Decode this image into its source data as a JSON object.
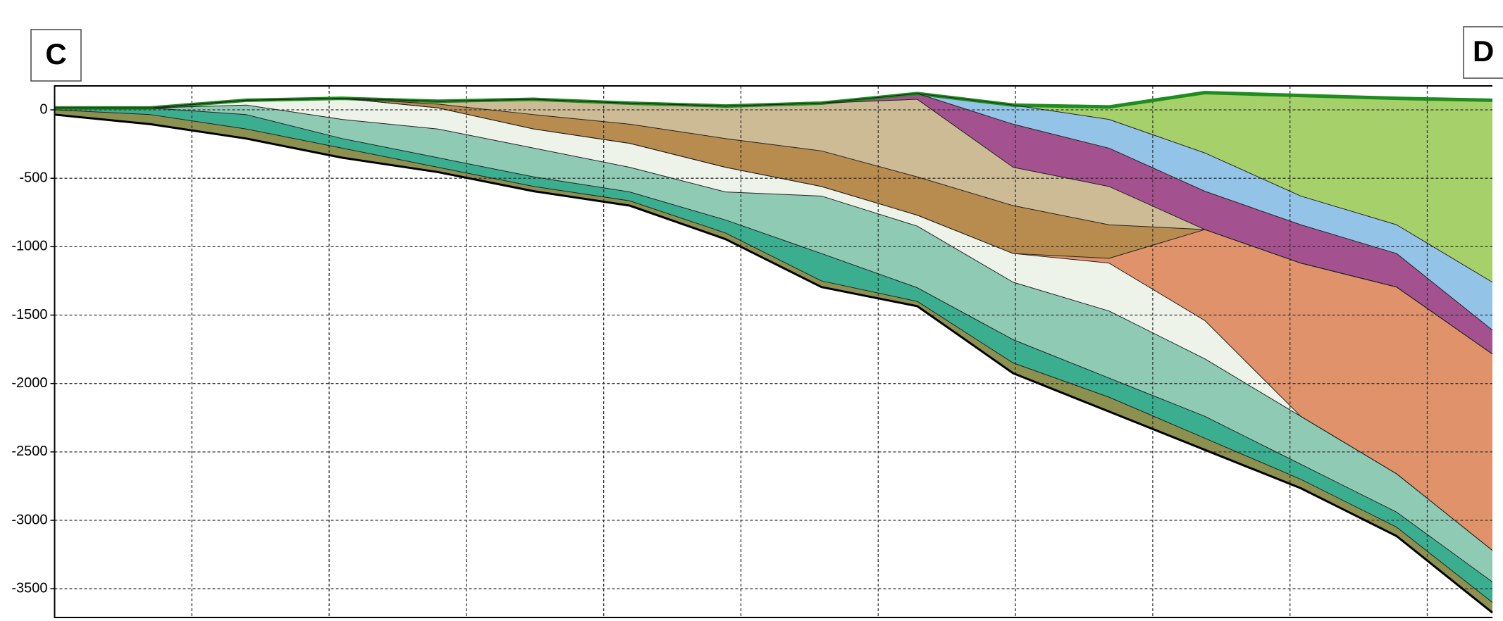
{
  "chart_data": {
    "type": "section",
    "labels": {
      "left": "C",
      "right": "D"
    },
    "ylim": [
      -3710,
      175
    ],
    "yticks": [
      0,
      -500,
      -1000,
      -1500,
      -2000,
      -2500,
      -3000,
      -3500
    ],
    "grid": true,
    "surface_color": "#1e8c1e",
    "series": [
      {
        "color": "#a6d06a",
        "values": [
          14,
          14,
          70,
          84,
          63,
          77,
          49,
          28,
          49,
          119,
          35,
          21,
          126,
          105,
          84,
          70
        ]
      },
      {
        "color": "#93c4e8",
        "values": [
          14,
          14,
          70,
          84,
          63,
          77,
          49,
          28,
          49,
          119,
          35,
          -70,
          -315,
          -630,
          -840,
          -1260
        ]
      },
      {
        "color": "#a3528f",
        "values": [
          14,
          14,
          70,
          84,
          63,
          77,
          49,
          28,
          49,
          119,
          -105,
          -280,
          -595,
          -840,
          -1050,
          -1610
        ]
      },
      {
        "color": "#cdbb96",
        "values": [
          14,
          14,
          70,
          84,
          63,
          77,
          49,
          28,
          49,
          77,
          -420,
          -560,
          -875,
          -1120,
          -1295,
          -1785
        ]
      },
      {
        "color": "#b88b4f",
        "values": [
          14,
          14,
          70,
          84,
          42,
          -35,
          -105,
          -210,
          -300,
          -490,
          -700,
          -840,
          -875,
          -1120,
          -1295,
          -1785
        ]
      },
      {
        "color": "#e0936a",
        "values": [
          14,
          14,
          70,
          84,
          14,
          -140,
          -245,
          -420,
          -560,
          -770,
          -1050,
          -1085,
          -875,
          -1120,
          -1295,
          -1785
        ]
      },
      {
        "color": "#eef3ea",
        "values": [
          14,
          14,
          70,
          84,
          14,
          -140,
          -245,
          -420,
          -560,
          -770,
          -1050,
          -1120,
          -1540,
          -2240,
          -2660,
          -3220
        ]
      },
      {
        "color": "#8ecab4",
        "values": [
          14,
          14,
          35,
          -70,
          -140,
          -280,
          -420,
          -600,
          -630,
          -850,
          -1260,
          -1470,
          -1820,
          -2240,
          -2660,
          -3220
        ]
      },
      {
        "color": "#3aae8f",
        "values": [
          14,
          14,
          -35,
          -210,
          -350,
          -490,
          -600,
          -805,
          -1050,
          -1300,
          -1680,
          -1960,
          -2240,
          -2590,
          -2940,
          -3450
        ]
      },
      {
        "color": "#8c9150",
        "values": [
          0,
          -35,
          -140,
          -280,
          -420,
          -560,
          -665,
          -900,
          -1250,
          -1400,
          -1850,
          -2100,
          -2400,
          -2700,
          -3050,
          -3600
        ]
      },
      {
        "color": "#000000",
        "values": [
          -35,
          -105,
          -210,
          -350,
          -455,
          -595,
          -700,
          -945,
          -1295,
          -1435,
          -1925,
          -2205,
          -2485,
          -2765,
          -3115,
          -3675
        ]
      }
    ]
  }
}
